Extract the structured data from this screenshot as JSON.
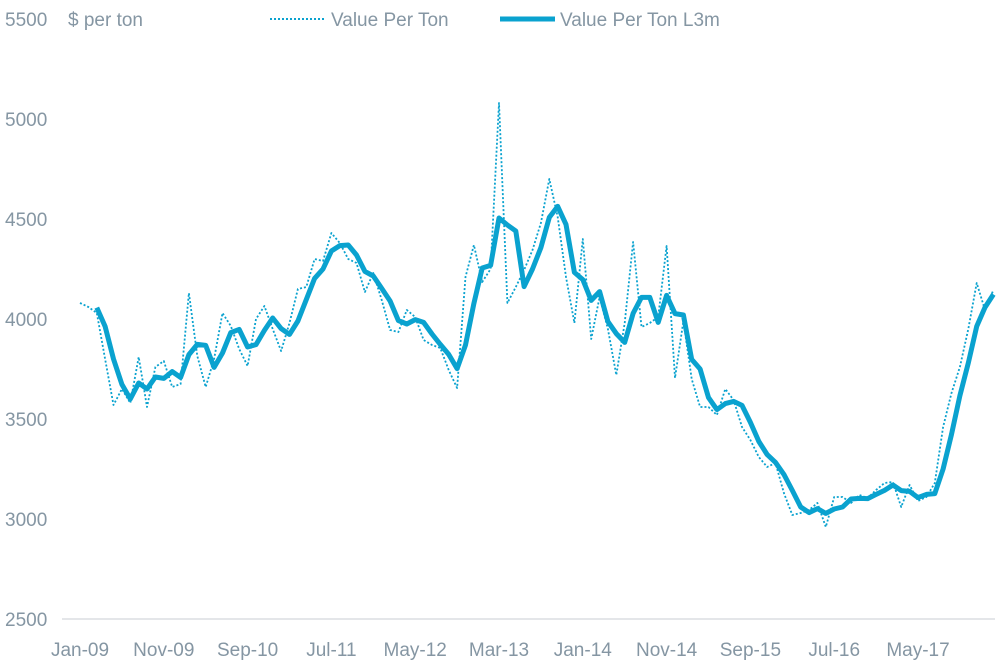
{
  "colors": {
    "line": "#0aa2cf",
    "text": "#8596a3",
    "axis": "#c9ced3"
  },
  "chart_data": {
    "type": "line",
    "title": "",
    "ylabel": "$ per ton",
    "xlabel": "",
    "ylim": [
      2500,
      5500
    ],
    "yticks": [
      2500,
      3000,
      3500,
      4000,
      4500,
      5000,
      5500
    ],
    "x_start": "Jan-09",
    "x_frequency": "monthly",
    "xtick_labels": [
      "Jan-09",
      "Nov-09",
      "Sep-10",
      "Jul-11",
      "May-12",
      "Mar-13",
      "Jan-14",
      "Nov-14",
      "Sep-15",
      "Jul-16",
      "May-17"
    ],
    "xtick_every_months": 10,
    "grid": false,
    "legend_position": "top",
    "series": [
      {
        "name": "Value Per Ton",
        "style": "dotted",
        "start_index": 0,
        "values": [
          4080,
          4060,
          4030,
          3800,
          3570,
          3650,
          3580,
          3810,
          3560,
          3760,
          3790,
          3660,
          3675,
          4130,
          3815,
          3660,
          3800,
          4030,
          3965,
          3850,
          3765,
          4000,
          4065,
          3950,
          3840,
          3980,
          4150,
          4160,
          4300,
          4290,
          4430,
          4380,
          4300,
          4280,
          4135,
          4230,
          4095,
          3945,
          3935,
          4045,
          4010,
          3895,
          3870,
          3855,
          3745,
          3655,
          4210,
          4370,
          4185,
          4250,
          5080,
          4080,
          4160,
          4245,
          4345,
          4480,
          4700,
          4510,
          4210,
          3980,
          4400,
          3900,
          4110,
          3950,
          3720,
          3980,
          4385,
          3960,
          3980,
          4010,
          4365,
          3705,
          3990,
          3700,
          3560,
          3560,
          3520,
          3650,
          3595,
          3460,
          3395,
          3310,
          3260,
          3280,
          3130,
          3020,
          3030,
          3045,
          3080,
          2960,
          3110,
          3110,
          3080,
          3120,
          3105,
          3145,
          3180,
          3185,
          3060,
          3170,
          3090,
          3110,
          3180,
          3460,
          3630,
          3760,
          3950,
          4180,
          4045,
          4145
        ]
      },
      {
        "name": "Value Per Ton L3m",
        "style": "solid-thick",
        "start_index": 2,
        "values": [
          4057,
          3963,
          3800,
          3673,
          3600,
          3680,
          3650,
          3710,
          3703,
          3737,
          3708,
          3822,
          3873,
          3868,
          3758,
          3830,
          3932,
          3948,
          3860,
          3872,
          3943,
          4005,
          3952,
          3923,
          3990,
          4097,
          4203,
          4250,
          4340,
          4367,
          4370,
          4320,
          4238,
          4215,
          4153,
          4090,
          3992,
          3975,
          3997,
          3983,
          3925,
          3873,
          3823,
          3752,
          3870,
          4078,
          4255,
          4268,
          4505,
          4470,
          4440,
          4162,
          4250,
          4357,
          4508,
          4563,
          4473,
          4233,
          4197,
          4093,
          4137,
          3987,
          3927,
          3883,
          4028,
          4108,
          4108,
          3983,
          4118,
          4027,
          4020,
          3798,
          3750,
          3607,
          3547,
          3577,
          3588,
          3568,
          3483,
          3388,
          3322,
          3283,
          3223,
          3143,
          3060,
          3032,
          3052,
          3028,
          3050,
          3060,
          3100,
          3103,
          3102,
          3123,
          3143,
          3170,
          3142,
          3138,
          3107,
          3123,
          3127,
          3250,
          3423,
          3617,
          3780,
          3963,
          4058,
          4123
        ]
      }
    ]
  }
}
